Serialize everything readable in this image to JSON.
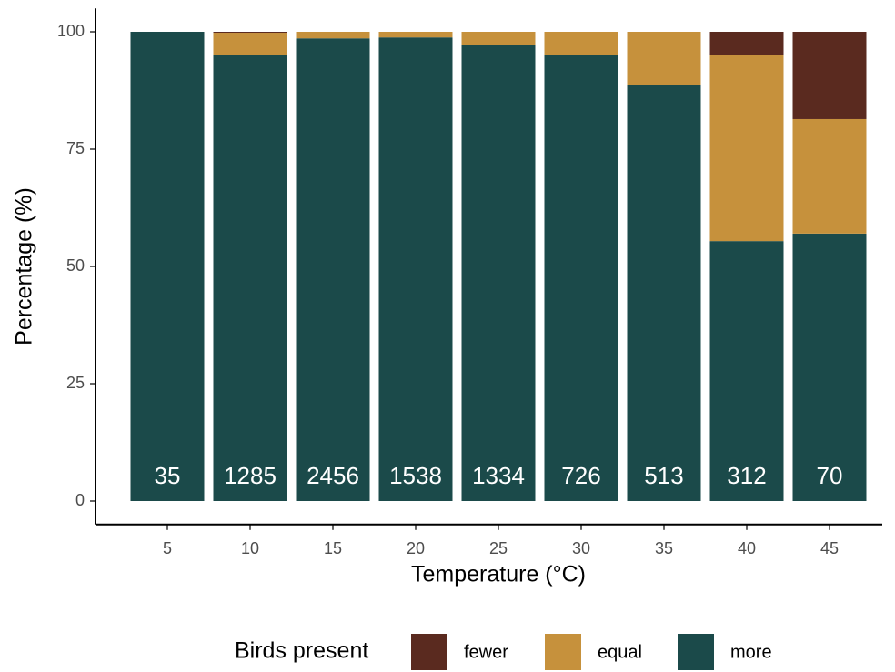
{
  "chart_data": {
    "type": "stacked_bar",
    "x_label": "Temperature (°C)",
    "y_label": "Percentage (%)",
    "categories": [
      5,
      10,
      15,
      20,
      25,
      30,
      35,
      40,
      45
    ],
    "series": [
      {
        "name": "fewer",
        "color": "#5a2a1f",
        "values": [
          0,
          0.2,
          0,
          0,
          0,
          0,
          0,
          5,
          18.6
        ]
      },
      {
        "name": "equal",
        "color": "#c6913c",
        "values": [
          0,
          4.8,
          1.4,
          1.2,
          2.9,
          5,
          11.4,
          39.6,
          24.4
        ]
      },
      {
        "name": "more",
        "color": "#1b4a4a",
        "values": [
          100,
          95,
          98.6,
          98.8,
          97.1,
          95,
          88.6,
          55.4,
          57
        ]
      }
    ],
    "bar_labels": [
      35,
      1285,
      2456,
      1538,
      1334,
      726,
      513,
      312,
      70
    ],
    "ylim": [
      -5,
      105
    ],
    "yticks": [
      0,
      25,
      50,
      75,
      100
    ],
    "legend_title": "Birds present",
    "legend_position": "bottom"
  }
}
